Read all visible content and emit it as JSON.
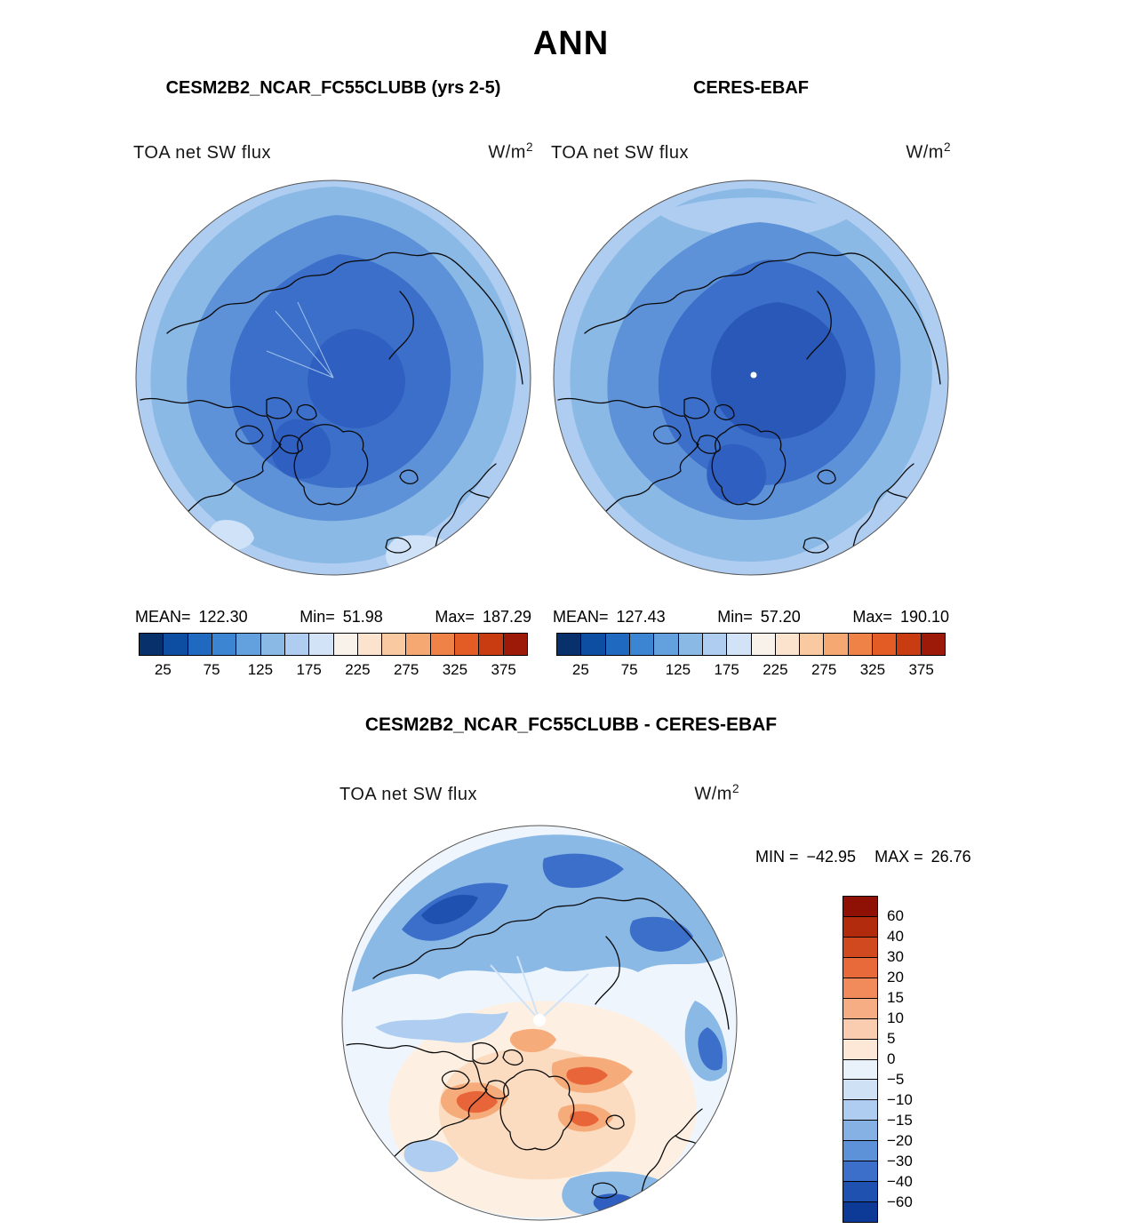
{
  "title": "ANN",
  "panels": [
    {
      "header": "CESM2B2_NCAR_FC55CLUBB (yrs 2-5)",
      "var_label": "TOA net SW flux",
      "units_base": "W/m",
      "units_exp": "2",
      "stats": {
        "mean_label": "MEAN=",
        "mean": "122.30",
        "min_label": "Min=",
        "min": "51.98",
        "max_label": "Max=",
        "max": "187.29"
      }
    },
    {
      "header": "CERES-EBAF",
      "var_label": "TOA net SW flux",
      "units_base": "W/m",
      "units_exp": "2",
      "stats": {
        "mean_label": "MEAN=",
        "mean": "127.43",
        "min_label": "Min=",
        "min": "57.20",
        "max_label": "Max=",
        "max": "190.10"
      }
    }
  ],
  "flux_colorbar": {
    "colors": [
      "#08316c",
      "#0d4ea2",
      "#1f69c0",
      "#3b85d3",
      "#62a1dd",
      "#8ab9e6",
      "#aecdf0",
      "#d2e3f7",
      "#f8f2ea",
      "#fbe3cd",
      "#f9c9a2",
      "#f5a871",
      "#ef8246",
      "#e35c26",
      "#c93c12",
      "#9e1a08"
    ],
    "ticks": [
      "25",
      "75",
      "125",
      "175",
      "225",
      "275",
      "325",
      "375"
    ]
  },
  "diff": {
    "header": "CESM2B2_NCAR_FC55CLUBB - CERES-EBAF",
    "var_label": "TOA net SW flux",
    "units_base": "W/m",
    "units_exp": "2",
    "min_label": "MIN =",
    "min": "−42.95",
    "max_label": "MAX =",
    "max": "26.76",
    "colorbar": {
      "colors": [
        "#8f1105",
        "#b22b0d",
        "#d1491f",
        "#e8693a",
        "#f28b5c",
        "#f7ad84",
        "#fbcdb0",
        "#fde8d8",
        "#e9f2fb",
        "#cfe2f5",
        "#aecdf0",
        "#86b1e4",
        "#5e92d8",
        "#3b6fc9",
        "#1f51b0",
        "#0c3a96"
      ],
      "labels": [
        "60",
        "40",
        "30",
        "20",
        "15",
        "10",
        "5",
        "0",
        "−5",
        "−10",
        "−15",
        "−20",
        "−30",
        "−40",
        "−60"
      ]
    }
  },
  "chart_data": [
    {
      "type": "heatmap",
      "panel": "top-left",
      "title": "CESM2B2_NCAR_FC55CLUBB (yrs 2-5)",
      "season": "ANN",
      "variable": "TOA net SW flux",
      "units": "W/m^2",
      "projection": "north polar stereographic",
      "contour_levels": [
        25,
        50,
        75,
        100,
        125,
        150,
        175,
        200,
        225,
        250,
        275,
        300,
        325,
        350,
        375
      ],
      "colorbar_tick_labels": [
        25,
        75,
        125,
        175,
        225,
        275,
        325,
        375
      ],
      "stats": {
        "mean": 122.3,
        "min": 51.98,
        "max": 187.29
      },
      "legend_position": "bottom"
    },
    {
      "type": "heatmap",
      "panel": "top-right",
      "title": "CERES-EBAF",
      "season": "ANN",
      "variable": "TOA net SW flux",
      "units": "W/m^2",
      "projection": "north polar stereographic",
      "contour_levels": [
        25,
        50,
        75,
        100,
        125,
        150,
        175,
        200,
        225,
        250,
        275,
        300,
        325,
        350,
        375
      ],
      "colorbar_tick_labels": [
        25,
        75,
        125,
        175,
        225,
        275,
        325,
        375
      ],
      "stats": {
        "mean": 127.43,
        "min": 57.2,
        "max": 190.1
      },
      "legend_position": "bottom"
    },
    {
      "type": "heatmap",
      "panel": "bottom",
      "title": "CESM2B2_NCAR_FC55CLUBB - CERES-EBAF",
      "season": "ANN",
      "variable": "TOA net SW flux",
      "units": "W/m^2",
      "projection": "north polar stereographic",
      "contour_levels": [
        -60,
        -40,
        -30,
        -20,
        -15,
        -10,
        -5,
        0,
        5,
        10,
        15,
        20,
        30,
        40,
        60
      ],
      "stats": {
        "min": -42.95,
        "max": 26.76
      },
      "legend_position": "right"
    }
  ]
}
